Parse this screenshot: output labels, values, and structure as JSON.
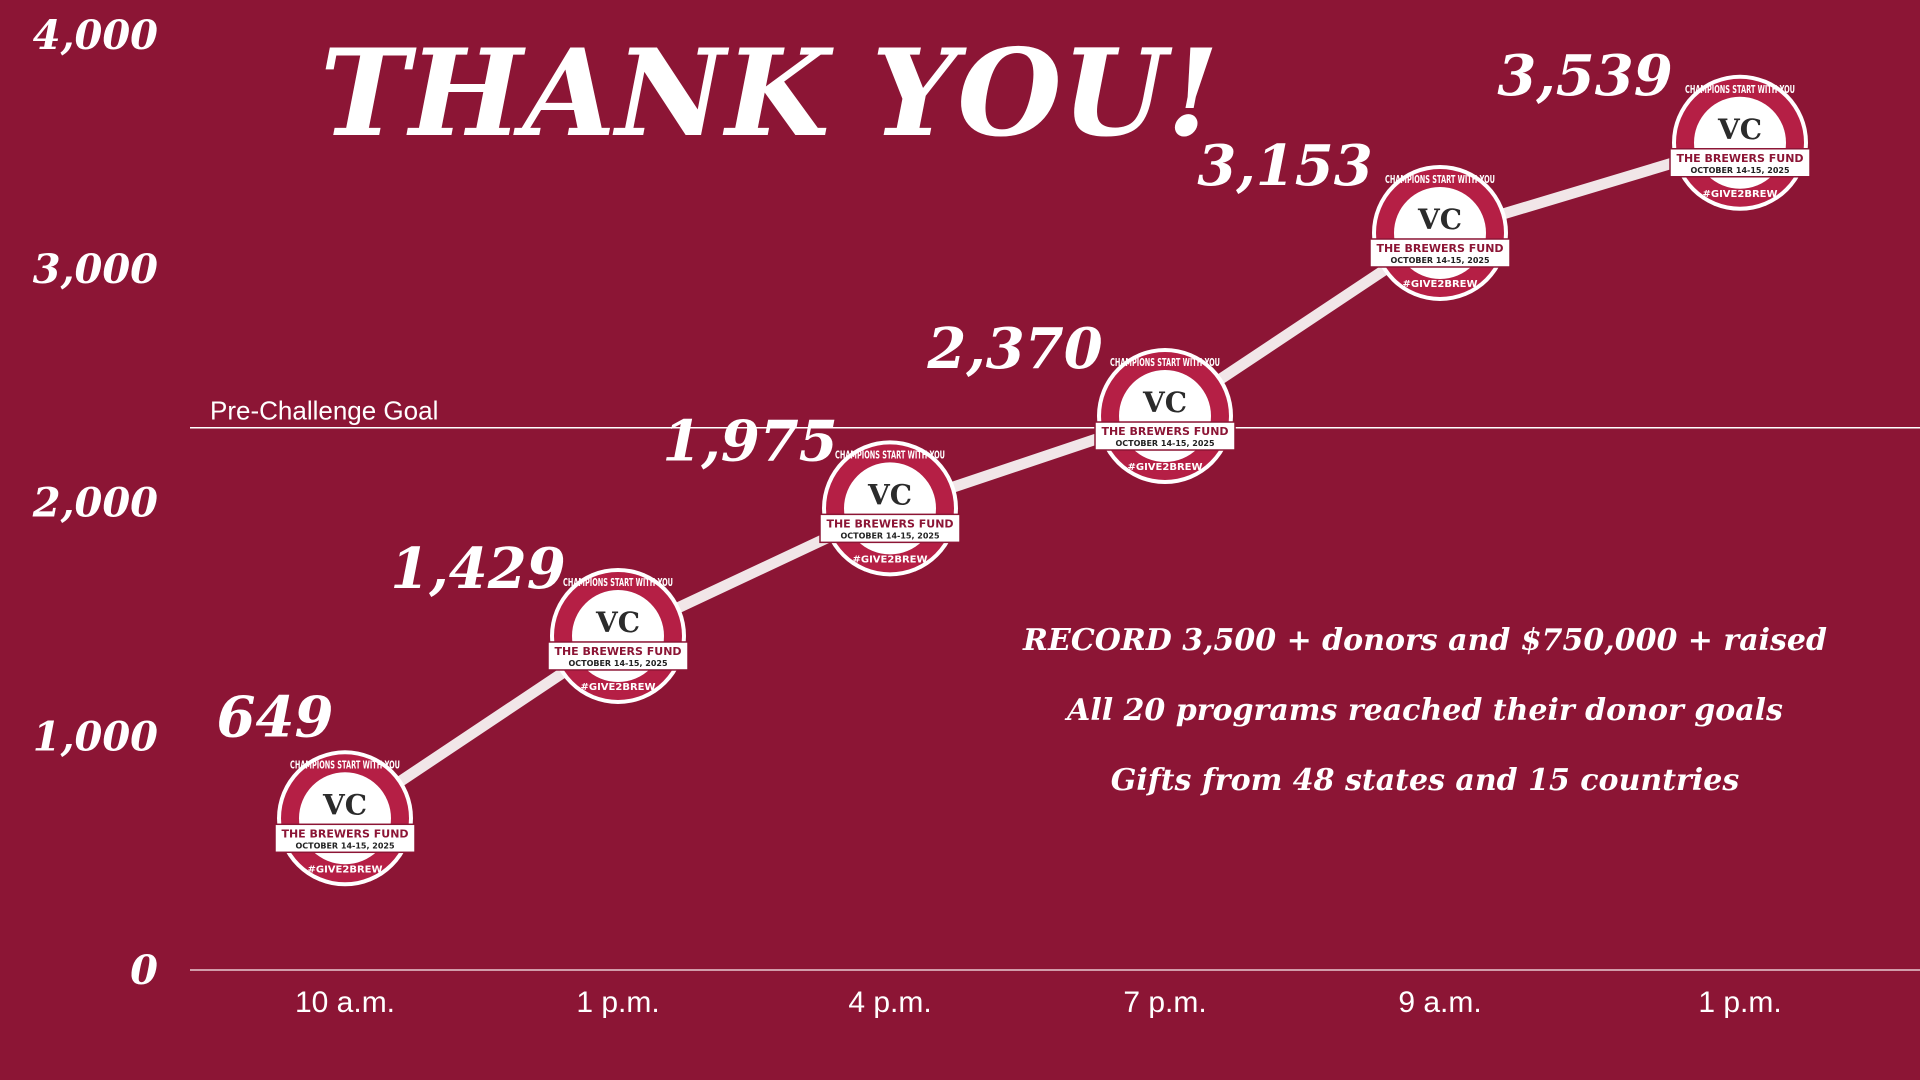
{
  "colors": {
    "background": "#8c1535",
    "line": "#f1e6e8",
    "text": "#ffffff",
    "goal_line": "#ffffff"
  },
  "title": "THANK YOU!",
  "goal_label": "Pre-Challenge Goal",
  "stats": [
    "RECORD 3,500 + donors and $750,000 + raised",
    "All 20 programs reached their donor goals",
    "Gifts from 48 states and 15 countries"
  ],
  "badge": {
    "top_text": "CHAMPIONS START WITH YOU",
    "fund": "THE BREWERS FUND",
    "dates": "OCTOBER 14-15, 2025",
    "hashtag": "#GIVE2BREW",
    "logo": "VC"
  },
  "chart_data": {
    "type": "line",
    "categories": [
      "10 a.m.",
      "1 p.m.",
      "4 p.m.",
      "7 p.m.",
      "9 a.m.",
      "1 p.m."
    ],
    "values": [
      649,
      1429,
      1975,
      2370,
      3153,
      3539
    ],
    "data_labels": [
      "649",
      "1,429",
      "1,975",
      "2,370",
      "3,153",
      "3,539"
    ],
    "yticks": [
      0,
      1000,
      2000,
      3000,
      4000
    ],
    "ytick_labels": [
      "0",
      "1,000",
      "2,000",
      "3,000",
      "4,000"
    ],
    "ylim": [
      0,
      4000
    ],
    "goal_value": 2320,
    "grid": false,
    "legend": "none"
  }
}
